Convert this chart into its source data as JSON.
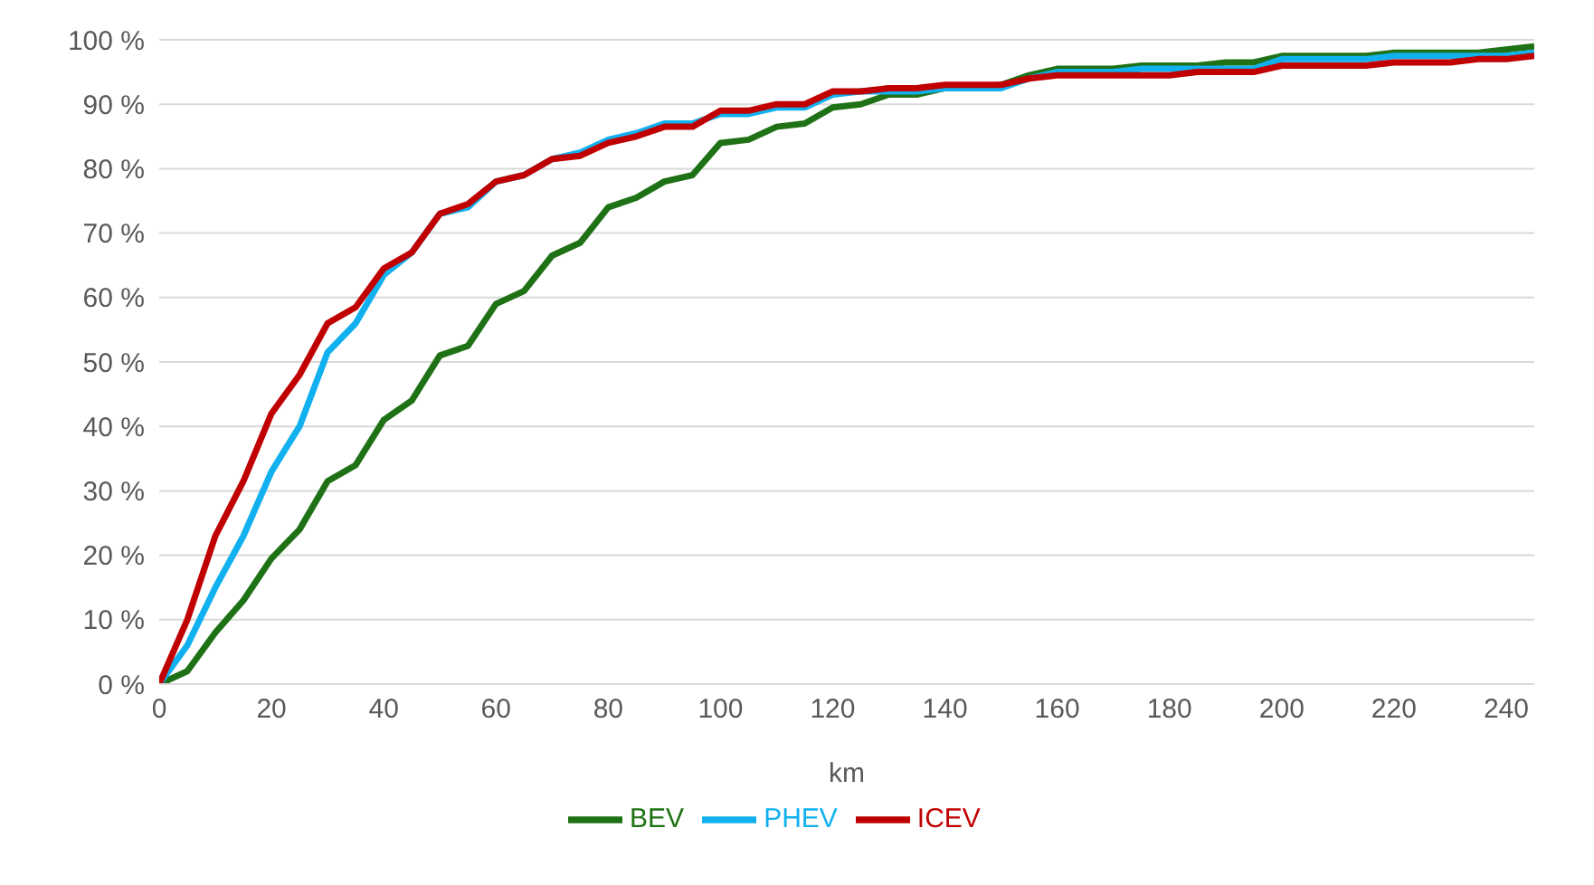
{
  "chart_data": {
    "type": "line",
    "xlabel": "km",
    "x": [
      0,
      5,
      10,
      15,
      20,
      25,
      30,
      35,
      40,
      45,
      50,
      55,
      60,
      65,
      70,
      75,
      80,
      85,
      90,
      95,
      100,
      105,
      110,
      115,
      120,
      125,
      130,
      135,
      140,
      145,
      150,
      155,
      160,
      165,
      170,
      175,
      180,
      185,
      190,
      195,
      200,
      205,
      210,
      215,
      220,
      225,
      230,
      235,
      240,
      245
    ],
    "series": [
      {
        "name": "BEV",
        "color": "#1e7114",
        "values": [
          0,
          2,
          8,
          13,
          19.5,
          24,
          31.5,
          34,
          41,
          44,
          51,
          52.5,
          59,
          61,
          66.5,
          68.5,
          74,
          75.5,
          78,
          79,
          84,
          84.5,
          86.5,
          87,
          89.5,
          90,
          91.5,
          91.5,
          92.5,
          92.5,
          93,
          94.5,
          95.5,
          95.5,
          95.5,
          96,
          96,
          96,
          96.5,
          96.5,
          97.5,
          97.5,
          97.5,
          97.5,
          98,
          98,
          98,
          98,
          98.5,
          99
        ]
      },
      {
        "name": "PHEV",
        "color": "#11b0ee",
        "values": [
          0,
          6,
          15,
          23,
          33,
          40,
          51.5,
          56,
          63.5,
          67,
          73,
          74,
          78,
          79,
          81.5,
          82.5,
          84.5,
          85.5,
          87,
          87,
          88.5,
          88.5,
          89.5,
          89.5,
          91.5,
          92,
          92,
          92,
          92.5,
          92.5,
          92.5,
          94,
          95,
          95,
          95,
          95.5,
          95.5,
          95.5,
          95.5,
          95.5,
          97,
          97,
          97,
          97,
          97.5,
          97.5,
          97.5,
          97.5,
          97.5,
          98
        ]
      },
      {
        "name": "ICEV",
        "color": "#c00000",
        "values": [
          0,
          10,
          23,
          31.5,
          42,
          48,
          56,
          58.5,
          64.5,
          67,
          73,
          74.5,
          78,
          79,
          81.5,
          82,
          84,
          85,
          86.5,
          86.5,
          89,
          89,
          90,
          90,
          92,
          92,
          92.5,
          92.5,
          93,
          93,
          93,
          94,
          94.5,
          94.5,
          94.5,
          94.5,
          94.5,
          95,
          95,
          95,
          96,
          96,
          96,
          96,
          96.5,
          96.5,
          96.5,
          97,
          97,
          97.5
        ]
      }
    ],
    "xlim": [
      0,
      245
    ],
    "xticks": [
      0,
      20,
      40,
      60,
      80,
      100,
      120,
      140,
      160,
      180,
      200,
      220,
      240
    ],
    "ylim": [
      0,
      100
    ],
    "yticks": [
      {
        "value": 0,
        "label": "0 %"
      },
      {
        "value": 10,
        "label": "10 %"
      },
      {
        "value": 20,
        "label": "20 %"
      },
      {
        "value": 30,
        "label": "30 %"
      },
      {
        "value": 40,
        "label": "40 %"
      },
      {
        "value": 50,
        "label": "50 %"
      },
      {
        "value": 60,
        "label": "60 %"
      },
      {
        "value": 70,
        "label": "70 %"
      },
      {
        "value": 80,
        "label": "80 %"
      },
      {
        "value": 90,
        "label": "90 %"
      },
      {
        "value": 100,
        "label": "100 %"
      }
    ],
    "grid": "y",
    "legend": "bottom",
    "marker": "none",
    "line_style": "solid"
  }
}
